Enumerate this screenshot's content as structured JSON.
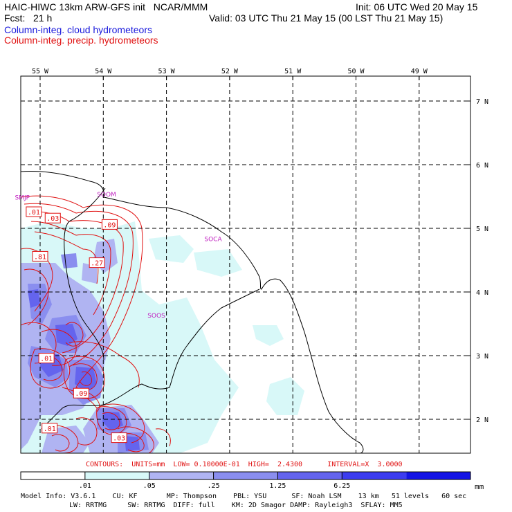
{
  "header": {
    "title_left": "HAIC-HIWC 13km ARW-GFS init   NCAR/MMM",
    "init": "Init: 06 UTC Wed 20 May 15",
    "fcst": "Fcst:   21 h",
    "valid": "Valid: 03 UTC Thu 21 May 15 (00 LST Thu 21 May 15)",
    "field1": "Column-integ. cloud hydrometeors",
    "field2": "Column-integ. precip. hydrometeors"
  },
  "colors": {
    "field1": "#1a1adc",
    "field2": "#e01010",
    "station": "#c020c0"
  },
  "axes": {
    "lon_labels": [
      "55 W",
      "54 W",
      "53 W",
      "52 W",
      "51 W",
      "50 W",
      "49 W"
    ],
    "lat_labels": [
      "7 N",
      "6 N",
      "5 N",
      "4 N",
      "3 N",
      "2 N"
    ]
  },
  "stations": [
    {
      "id": "SMJP",
      "lon": -55.4,
      "lat": 5.45
    },
    {
      "id": "SOOM",
      "lon": -54.1,
      "lat": 5.5
    },
    {
      "id": "SOCA",
      "lon": -52.4,
      "lat": 4.8
    },
    {
      "id": "SOOS",
      "lon": -53.3,
      "lat": 3.6
    }
  ],
  "contour_labels": [
    {
      "text": ".01",
      "lon": -55.1,
      "lat": 5.25
    },
    {
      "text": ".03",
      "lon": -54.8,
      "lat": 5.15
    },
    {
      "text": ".09",
      "lon": -53.9,
      "lat": 5.05
    },
    {
      "text": ".81",
      "lon": -55.0,
      "lat": 4.55
    },
    {
      "text": ".27",
      "lon": -54.1,
      "lat": 4.45
    },
    {
      "text": ".01",
      "lon": -54.9,
      "lat": 2.95
    },
    {
      "text": ".09",
      "lon": -54.35,
      "lat": 2.4
    },
    {
      "text": ".01",
      "lon": -54.85,
      "lat": 1.85
    },
    {
      "text": ".03",
      "lon": -53.75,
      "lat": 1.7
    }
  ],
  "contour_info": "CONTOURS:  UNITS=mm  LOW= 0.10000E-01  HIGH=  2.4300      INTERVAL=X  3.0000",
  "colorbar": {
    "ticks": [
      ".01",
      ".05",
      ".25",
      "1.25",
      "6.25"
    ],
    "units": "mm",
    "colors": [
      "#ffffff",
      "#d8f8f8",
      "#b0b4f2",
      "#8a8eef",
      "#6464ee",
      "#3c3cf0",
      "#1414e4"
    ]
  },
  "model_info": {
    "line1": "Model Info: V3.6.1    CU: KF       MP: Thompson    PBL: YSU      SF: Noah LSM    13 km   51 levels   60 sec",
    "line2": "LW: RRTMG     SW: RRTMG  DIFF: full    KM: 2D Smagor DAMP: Rayleigh3  SFLAY: MM5"
  }
}
